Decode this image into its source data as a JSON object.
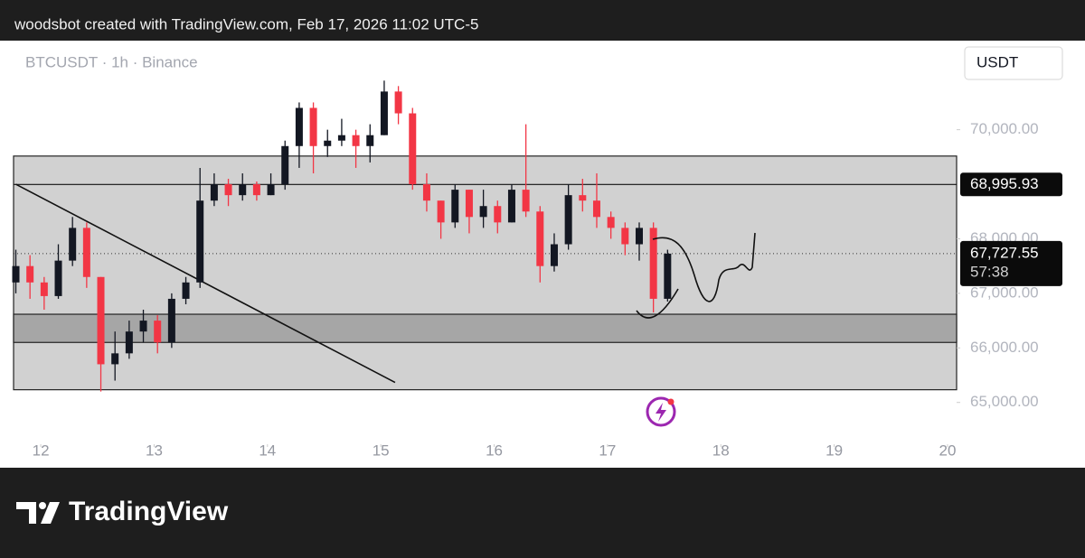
{
  "header": {
    "text": "woodsbot created with TradingView.com, Feb 17, 2026 11:02 UTC-5"
  },
  "chart_data": {
    "type": "candlestick",
    "symbol": "BTCUSDT · 1h · Binance",
    "currency": "USDT",
    "up_color": "#131722",
    "down_color": "#f23645",
    "x": [
      11.78,
      11.905,
      12.03,
      12.155,
      12.28,
      12.405,
      12.53,
      12.655,
      12.78,
      12.905,
      13.03,
      13.155,
      13.28,
      13.405,
      13.53,
      13.655,
      13.78,
      13.905,
      14.03,
      14.155,
      14.28,
      14.405,
      14.53,
      14.655,
      14.78,
      14.905,
      15.03,
      15.155,
      15.28,
      15.405,
      15.53,
      15.655,
      15.78,
      15.905,
      16.03,
      16.155,
      16.28,
      16.405,
      16.53,
      16.655,
      16.78,
      16.905,
      17.03,
      17.155,
      17.28,
      17.405,
      17.53
    ],
    "open": [
      67200,
      67500,
      67200,
      66950,
      67600,
      68200,
      67300,
      65700,
      65900,
      66300,
      66500,
      66100,
      66900,
      67200,
      68700,
      69000,
      68800,
      69000,
      68800,
      69000,
      69700,
      70400,
      69700,
      69800,
      69900,
      69700,
      69900,
      70700,
      70300,
      69000,
      68700,
      68300,
      68900,
      68400,
      68600,
      68300,
      68900,
      68500,
      67500,
      67900,
      68800,
      68700,
      68400,
      68200,
      67900,
      68200,
      66900
    ],
    "high": [
      67800,
      67700,
      67300,
      67900,
      68400,
      68300,
      67300,
      66300,
      66500,
      66700,
      66600,
      67000,
      67300,
      69300,
      69200,
      69100,
      69200,
      69050,
      69200,
      69800,
      70500,
      70500,
      70000,
      70200,
      70000,
      70100,
      70900,
      70800,
      70400,
      69200,
      68700,
      69000,
      68900,
      68900,
      68700,
      69000,
      70100,
      68600,
      68100,
      69000,
      69100,
      69200,
      68500,
      68300,
      68300,
      68300,
      67800
    ],
    "low": [
      67000,
      66900,
      66700,
      66900,
      67500,
      67100,
      65200,
      65400,
      65800,
      66100,
      65900,
      66000,
      66800,
      67100,
      68600,
      68600,
      68700,
      68700,
      68800,
      68900,
      69300,
      69200,
      69500,
      69700,
      69300,
      69400,
      69900,
      70100,
      68900,
      68500,
      68000,
      68200,
      68100,
      68200,
      68100,
      68300,
      68400,
      67200,
      67400,
      67800,
      68500,
      68200,
      68000,
      67700,
      67600,
      66650,
      66850
    ],
    "close": [
      67500,
      67200,
      66950,
      67600,
      68200,
      67300,
      65700,
      65900,
      66300,
      66500,
      66100,
      66900,
      67200,
      68700,
      69000,
      68800,
      69000,
      68800,
      69000,
      69700,
      70400,
      69700,
      69800,
      69900,
      69700,
      69900,
      70700,
      70300,
      69000,
      68700,
      68300,
      68900,
      68400,
      68600,
      68300,
      68900,
      68500,
      67500,
      67900,
      68800,
      68700,
      68400,
      68200,
      67900,
      68200,
      66900,
      67727.55
    ],
    "xlim": [
      11.76,
      20.08
    ],
    "xticks": [
      12,
      13,
      14,
      15,
      16,
      17,
      18,
      19,
      20
    ],
    "ylim": [
      64300,
      71633
    ],
    "yticks": [
      {
        "value": 65000,
        "label": "65,000.00"
      },
      {
        "value": 66000,
        "label": "66,000.00"
      },
      {
        "value": 67000,
        "label": "67,000.00"
      },
      {
        "value": 68000,
        "label": "68,000.00"
      },
      {
        "value": 70000,
        "label": "70,000.00"
      }
    ],
    "zones": [
      {
        "top": 69517,
        "bottom": 65233,
        "color": "#d1d1d1"
      },
      {
        "top": 66617,
        "bottom": 66100,
        "color": "#a6a6a6"
      }
    ],
    "trendline": {
      "x": [
        11.78,
        15.126
      ],
      "y": [
        69000,
        65367
      ]
    },
    "price_line": {
      "value": 68995.93,
      "label": "68,995.93"
    },
    "last_price": {
      "value": 67727.55,
      "label": "67,727.55",
      "countdown": "57:38"
    }
  },
  "footer": {
    "logo": "TradingView"
  }
}
